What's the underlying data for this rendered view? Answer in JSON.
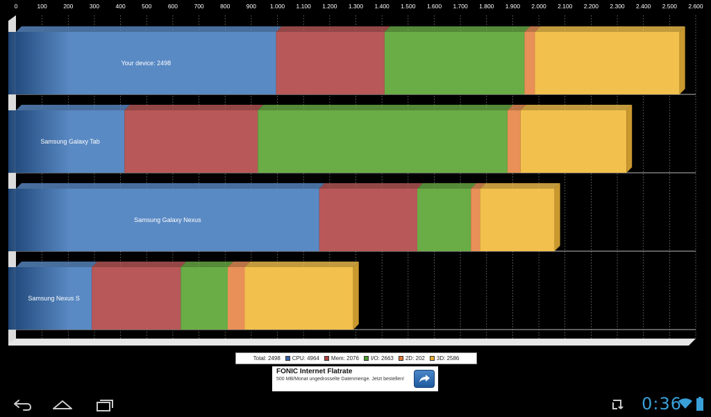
{
  "chart_data": {
    "type": "bar",
    "orientation": "horizontal",
    "stacked": true,
    "xlim": [
      0,
      2600
    ],
    "x_ticks": [
      "0",
      "100",
      "200",
      "300",
      "400",
      "500",
      "600",
      "700",
      "800",
      "900",
      "1.000",
      "1.100",
      "1.200",
      "1.300",
      "1.400",
      "1.500",
      "1.600",
      "1.700",
      "1.800",
      "1.900",
      "2.000",
      "2.100",
      "2.200",
      "2.300",
      "2.400",
      "2.500",
      "2.600"
    ],
    "grid": true,
    "legend_position": "bottom",
    "categories": [
      "Your device: 2498",
      "Samsung Galaxy Tab",
      "Samsung Galaxy Nexus",
      "Samsung Nexus S"
    ],
    "series": [
      {
        "name": "CPU",
        "color": "#5a8ac4",
        "values": [
          995,
          415,
          1160,
          290
        ]
      },
      {
        "name": "Mem",
        "color": "#b85858",
        "values": [
          415,
          510,
          375,
          340
        ]
      },
      {
        "name": "I/O",
        "color": "#6aac46",
        "values": [
          535,
          955,
          205,
          180
        ]
      },
      {
        "name": "2D",
        "color": "#e89058",
        "values": [
          40,
          50,
          35,
          65
        ]
      },
      {
        "name": "3D",
        "color": "#f2c04c",
        "values": [
          553,
          405,
          285,
          415
        ]
      }
    ]
  },
  "legend": {
    "total": "Total: 2498",
    "cpu": "CPU: 4964",
    "mem": "Mem: 2076",
    "io": "I/O: 2663",
    "d2": "2D: 202",
    "d3": "3D: 2586"
  },
  "ad": {
    "title": "FONIC Internet Flatrate",
    "text": "500 MB/Monat ungedrosselte Datenmenge. Jetzt bestellen!",
    "button_icon": "share-arrow-icon"
  },
  "status_bar": {
    "clock": "0:36",
    "icons": [
      "back-icon",
      "home-icon",
      "recent-apps-icon",
      "sync-icon",
      "wifi-icon"
    ]
  }
}
